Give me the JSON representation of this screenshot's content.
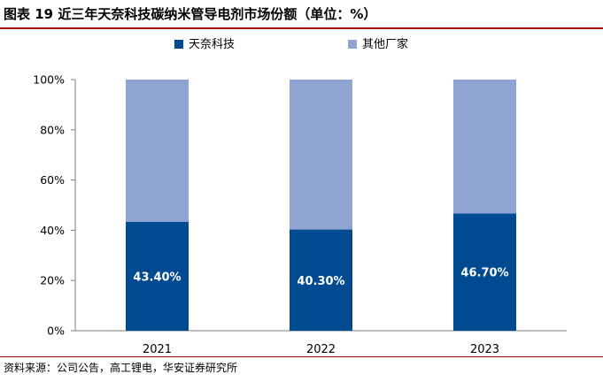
{
  "header": {
    "title": "图表 19  近三年天奈科技碳纳米管导电剂市场份额（单位：%）"
  },
  "footer": {
    "source": "资料来源：公司公告，高工锂电，华安证券研究所"
  },
  "colors": {
    "rule": "#a40000",
    "primary": "#004a91",
    "secondary": "#8fa4d2"
  },
  "chart_data": {
    "type": "bar",
    "stacked": true,
    "categories": [
      "2021",
      "2022",
      "2023"
    ],
    "series": [
      {
        "name": "天奈科技",
        "values": [
          43.4,
          40.3,
          46.7
        ],
        "labels": [
          "43.40%",
          "40.30%",
          "46.70%"
        ],
        "color": "#004a91"
      },
      {
        "name": "其他厂家",
        "values": [
          56.6,
          59.7,
          53.3
        ],
        "color": "#8fa4d2"
      }
    ],
    "yticks": [
      "0%",
      "20%",
      "40%",
      "60%",
      "80%",
      "100%"
    ],
    "ylim": [
      0,
      100
    ],
    "legend": "top-center",
    "grid": false
  }
}
